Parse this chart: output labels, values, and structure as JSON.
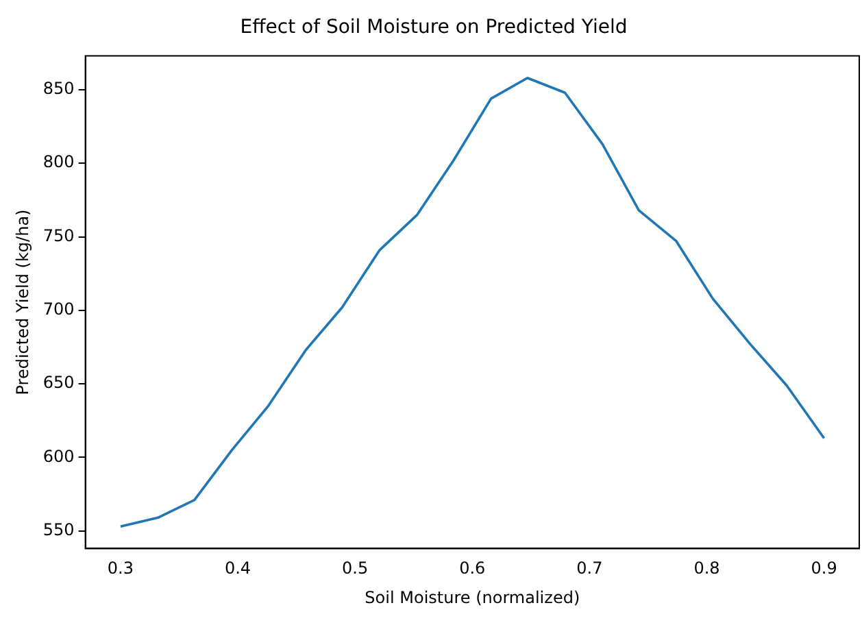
{
  "chart_data": {
    "type": "line",
    "title": "Effect of Soil Moisture on Predicted Yield",
    "xlabel": "Soil Moisture (normalized)",
    "ylabel": "Predicted Yield (kg/ha)",
    "x": [
      0.3,
      0.332,
      0.363,
      0.395,
      0.426,
      0.458,
      0.489,
      0.521,
      0.553,
      0.584,
      0.616,
      0.647,
      0.679,
      0.711,
      0.742,
      0.774,
      0.805,
      0.837,
      0.868,
      0.9
    ],
    "series": [
      {
        "color": "#1f77b4",
        "values": [
          553,
          559,
          571,
          605,
          635,
          673,
          702,
          741,
          765,
          802,
          844,
          858,
          848,
          813,
          768,
          747,
          708,
          677,
          649,
          613
        ]
      }
    ],
    "xlim": [
      0.27,
      0.93
    ],
    "xticks": [
      0.3,
      0.4,
      0.5,
      0.6,
      0.7,
      0.8,
      0.9
    ],
    "ylim": [
      538,
      873
    ],
    "yticks": [
      550,
      600,
      650,
      700,
      750,
      800,
      850
    ],
    "grid": false,
    "legend": false,
    "marker": "none",
    "line_style": "solid"
  }
}
